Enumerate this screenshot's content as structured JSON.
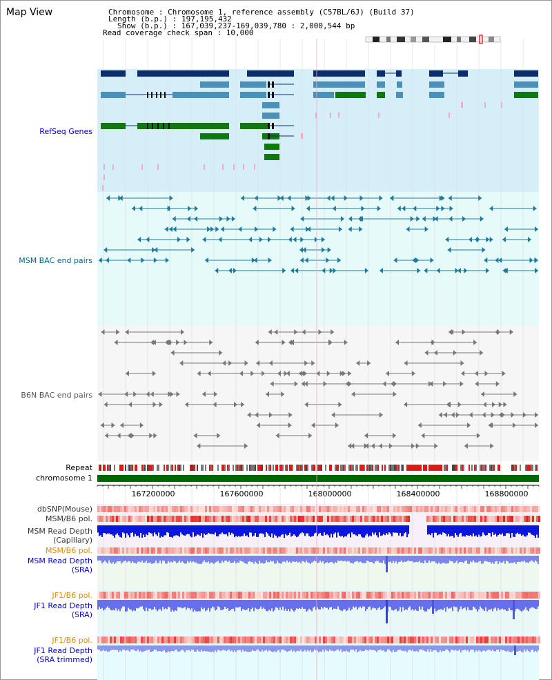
{
  "header": {
    "title": "Map View",
    "chromosome_line": "Chromosome    : Chromosome 1, reference assembly (C57BL/6J) (Build 37)",
    "length_line": "Length (b.p.) : 197,195,432",
    "show_line": "Show (b.p.) : 167,039,237-169,039,780 : 2,000,544 bp",
    "span_line": "Read coverage check span : 10,000"
  },
  "tracks": {
    "refseq": "RefSeq Genes",
    "msm_bac": "MSM BAC end pairs",
    "b6n_bac": "B6N BAC end pairs",
    "repeat": "Repeat",
    "chromosome": "chromosome 1",
    "dbsnp": "dbSNP(Mouse)",
    "msm_b6_pol_1": "MSM/B6 pol.",
    "msm_depth_cap_1": "MSM Read Depth",
    "msm_depth_cap_2": "(Capillary)",
    "msm_b6_pol_2": "MSM/B6 pol.",
    "msm_depth_sra_1": "MSM Read Depth",
    "msm_depth_sra_2": "(SRA)",
    "jf1_pol_1": "JF1/B6 pol.",
    "jf1_depth_sra_1": "JF1 Read Depth",
    "jf1_depth_sra_2": "(SRA)",
    "jf1_pol_2": "JF1/B6 pol.",
    "jf1_depth_trim_1": "JF1 Read Depth",
    "jf1_depth_trim_2": "(SRA trimmed)"
  },
  "ruler_ticks": [
    "167200000",
    "167600000",
    "168000000",
    "168400000",
    "168800000"
  ],
  "colors": {
    "label_dark": "#333333",
    "label_blue": "#0000cc",
    "label_teal": "#006688",
    "label_orange": "#e08a00",
    "gene_navy": "#0c2d6b",
    "gene_steel": "#4a90b8",
    "gene_green": "#117711",
    "refseq_bg": "#d5eef8",
    "msm_bg": "#e6fafa",
    "b6n_bg": "#f6f6f6",
    "chrom_green": "#006600",
    "depth_blue": "#0b16e0",
    "depth_light": "#7a86ee"
  }
}
